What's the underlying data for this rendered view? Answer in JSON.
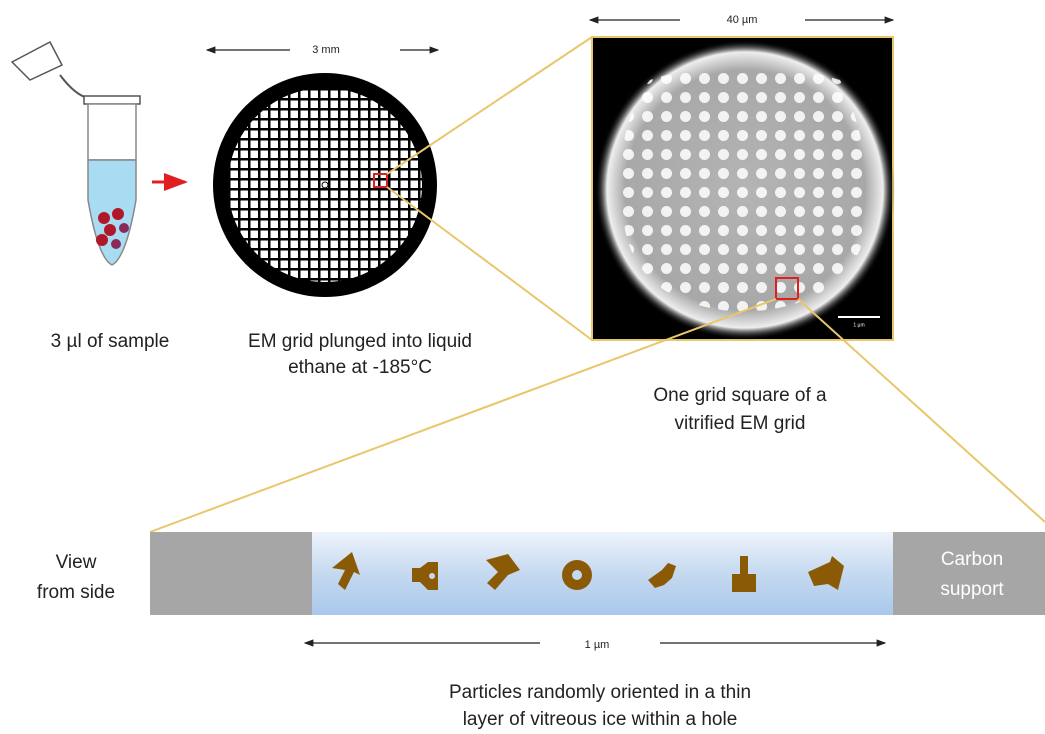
{
  "labels": {
    "grid_width": "3 mm",
    "square_width": "40 µm",
    "scale_bar": "1 µm",
    "hole_width": "1 µm"
  },
  "captions": {
    "sample": [
      "3 µl of sample"
    ],
    "grid": [
      "EM grid plunged into liquid",
      "ethane at -185°C"
    ],
    "square": [
      "One grid square of a",
      "vitrified EM grid"
    ],
    "side_view": [
      "View",
      "from side"
    ],
    "carbon": [
      "Carbon",
      "support"
    ],
    "particles": [
      "Particles randomly oriented in a thin",
      "layer of vitreous ice within a hole"
    ]
  }
}
